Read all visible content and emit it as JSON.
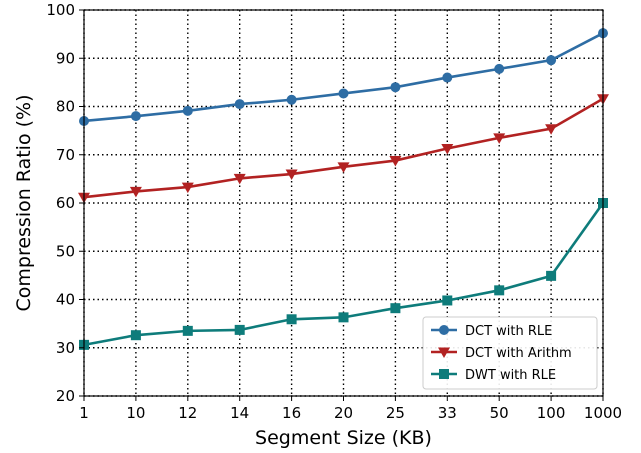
{
  "chart_data": {
    "type": "line",
    "xlabel": "Segment Size (KB)",
    "ylabel": "Compression Ratio (%)",
    "categories": [
      "1",
      "10",
      "12",
      "14",
      "16",
      "20",
      "25",
      "33",
      "50",
      "100",
      "1000"
    ],
    "ylim": [
      20,
      100
    ],
    "yticks": [
      20,
      30,
      40,
      50,
      60,
      70,
      80,
      90,
      100
    ],
    "grid": true,
    "grid_style": "dotted",
    "legend_position": "lower-right",
    "series": [
      {
        "name": "DCT with RLE",
        "color": "#2e6da4",
        "marker": "circle",
        "values": [
          77.0,
          78.0,
          79.1,
          80.5,
          81.4,
          82.7,
          84.0,
          86.0,
          87.8,
          89.6,
          95.2
        ]
      },
      {
        "name": "DCT with Arithm",
        "color": "#b22222",
        "marker": "triangle-down",
        "values": [
          61.2,
          62.4,
          63.3,
          65.1,
          66.0,
          67.5,
          68.8,
          71.3,
          73.5,
          75.4,
          81.6
        ]
      },
      {
        "name": "DWT with RLE",
        "color": "#0e7c7b",
        "marker": "square",
        "values": [
          30.6,
          32.6,
          33.5,
          33.7,
          35.9,
          36.3,
          38.2,
          39.8,
          41.9,
          44.9,
          60.0
        ]
      }
    ]
  }
}
